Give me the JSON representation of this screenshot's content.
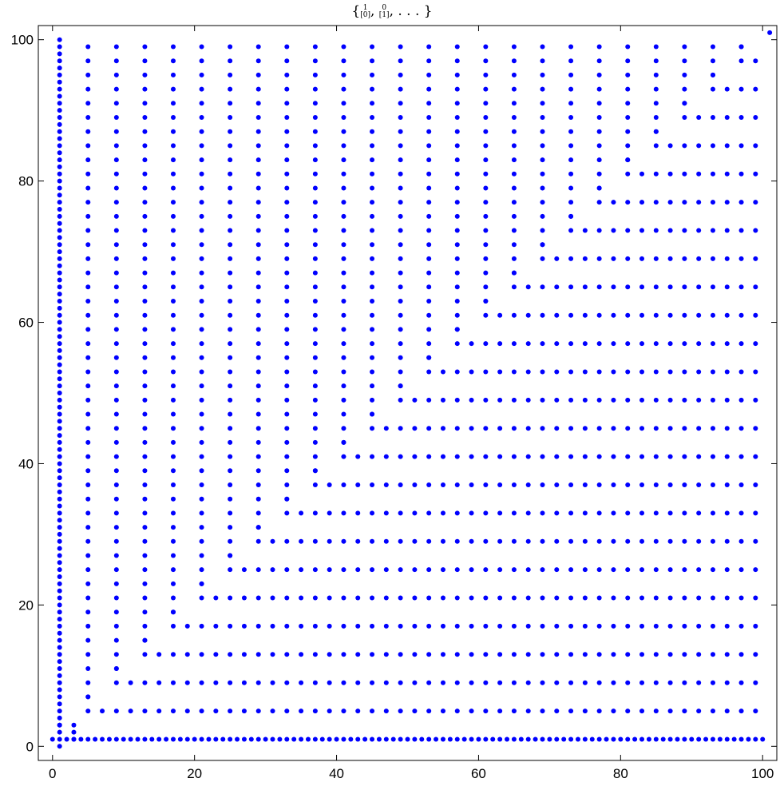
{
  "chart_data": {
    "type": "scatter",
    "title": "{[1 0], [0 1], ...}",
    "xlabel": "",
    "ylabel": "",
    "xlim": [
      -2,
      102
    ],
    "ylim": [
      -2,
      102
    ],
    "xticks": [
      0,
      20,
      40,
      60,
      80,
      100
    ],
    "yticks": [
      0,
      20,
      40,
      60,
      80,
      100
    ],
    "grid": false,
    "marker_color": "#0000ff",
    "pattern": {
      "axis_row_y": 1,
      "axis_row_x": [
        0,
        100
      ],
      "axis_col_x": 1,
      "axis_col_y": [
        0,
        100
      ],
      "small_corner": [
        [
          1,
          3
        ],
        [
          3,
          3
        ],
        [
          3,
          2
        ],
        [
          3,
          1
        ]
      ],
      "band_count": 25,
      "band_spacing": 4,
      "corner_start": 5,
      "max_coord": 99
    }
  }
}
